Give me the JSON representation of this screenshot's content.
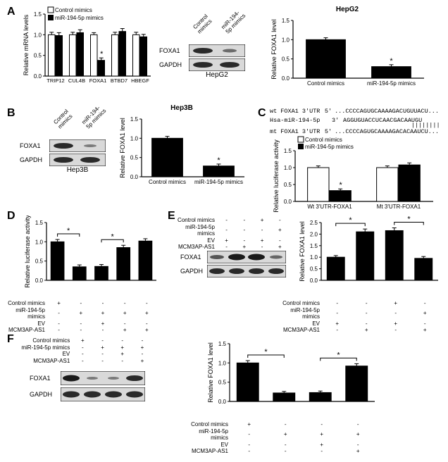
{
  "colors": {
    "bar_black": "#000000",
    "bar_white": "#ffffff",
    "axis": "#000000",
    "bg": "#ffffff",
    "blot_bg": "#d9d9d9",
    "blot_band": "#2a2a2a"
  },
  "legend": {
    "control": "Control mimics",
    "mir": "miR-194-5p mimics"
  },
  "panelA": {
    "label": "A",
    "mrna_chart": {
      "type": "bar-grouped",
      "ytitle": "Relative mRNA levels",
      "ylim": [
        0,
        1.5
      ],
      "yticks": [
        0.0,
        0.5,
        1.0,
        1.5
      ],
      "categories": [
        "TRIP12",
        "CUL4B",
        "FOXA1",
        "BTBD7",
        "HBEGF"
      ],
      "series": [
        {
          "name": "Control mimics",
          "fill": "#ffffff",
          "stroke": "#000000",
          "values": [
            1.0,
            1.0,
            1.0,
            1.0,
            1.0
          ],
          "err": [
            0.06,
            0.06,
            0.05,
            0.06,
            0.06
          ]
        },
        {
          "name": "miR-194-5p mimics",
          "fill": "#000000",
          "stroke": "#000000",
          "values": [
            0.98,
            1.05,
            0.38,
            1.08,
            0.95
          ],
          "err": [
            0.07,
            0.07,
            0.06,
            0.07,
            0.06
          ]
        }
      ],
      "sig_marks": [
        {
          "category": "FOXA1",
          "series": 1,
          "text": "*"
        }
      ]
    },
    "blot_hepg2": {
      "title": "HepG2",
      "cols": [
        "Control mimics",
        "miR-194-5p mimics"
      ],
      "rows": [
        "FOXA1",
        "GAPDH"
      ]
    },
    "foxa1_hepg2_chart": {
      "title": "HepG2",
      "type": "bar",
      "ytitle": "Relative FOXA1 level",
      "ylim": [
        0,
        1.5
      ],
      "yticks": [
        0.0,
        0.5,
        1.0,
        1.5
      ],
      "categories": [
        "Control mimics",
        "miR-194-5p mimics"
      ],
      "bars": [
        {
          "value": 1.0,
          "err": 0.05,
          "fill": "#000000"
        },
        {
          "value": 0.3,
          "err": 0.05,
          "fill": "#000000",
          "sig": "*"
        }
      ]
    }
  },
  "panelB": {
    "label": "B",
    "blot_hep3b": {
      "title": "Hep3B",
      "cols": [
        "Control mimics",
        "miR-194-5p mimics"
      ],
      "rows": [
        "FOXA1",
        "GAPDH"
      ]
    },
    "foxa1_hep3b_chart": {
      "title": "Hep3B",
      "type": "bar",
      "ytitle": "Relative FOXA1 level",
      "ylim": [
        0,
        1.5
      ],
      "yticks": [
        0.0,
        0.5,
        1.0,
        1.5
      ],
      "categories": [
        "Control mimics",
        "miR-194-5p mimics"
      ],
      "bars": [
        {
          "value": 1.0,
          "err": 0.05,
          "fill": "#000000"
        },
        {
          "value": 0.28,
          "err": 0.05,
          "fill": "#000000",
          "sig": "*"
        }
      ]
    }
  },
  "panelC": {
    "label": "C",
    "seq": {
      "wt_label": "wt FOXA1 3'UTR",
      "wt_5": "5'",
      "wt_seq": "...CCCCAGUGCAAAAGACUGUUACU...",
      "mir_label": "Hsa-miR-194-5p",
      "mir_3": "3'",
      "align": "        ||||||||",
      "mir_seq": "AGGUGUACCUCAACGACAAUGU",
      "mt_label": "mt FOXA1 3'UTR",
      "mt_5": "5'",
      "mt_seq": "...CCCCAGUGCAAAAGACACAAUCU..."
    },
    "luc_chart": {
      "type": "bar-grouped",
      "ytitle": "Relative luciferase activity",
      "ylim": [
        0,
        1.5
      ],
      "yticks": [
        0.0,
        0.5,
        1.0,
        1.5
      ],
      "categories": [
        "Wt 3'UTR-FOXA1",
        "Mt 3'UTR-FOXA1"
      ],
      "series": [
        {
          "name": "Control mimics",
          "fill": "#ffffff",
          "stroke": "#000000",
          "values": [
            1.0,
            1.0
          ],
          "err": [
            0.05,
            0.05
          ]
        },
        {
          "name": "miR-194-5p mimics",
          "fill": "#000000",
          "stroke": "#000000",
          "values": [
            0.32,
            1.08
          ],
          "err": [
            0.05,
            0.06
          ]
        }
      ],
      "sig_marks": [
        {
          "category": "Wt 3'UTR-FOXA1",
          "series": 1,
          "text": "*"
        }
      ]
    }
  },
  "panelD": {
    "label": "D",
    "chart": {
      "type": "bar",
      "ytitle": "Relative luciferase activity",
      "ylim": [
        0,
        1.5
      ],
      "yticks": [
        0.0,
        0.5,
        1.0,
        1.5
      ],
      "bars": [
        {
          "value": 1.0,
          "err": 0.06,
          "fill": "#000000"
        },
        {
          "value": 0.35,
          "err": 0.05,
          "fill": "#000000"
        },
        {
          "value": 0.36,
          "err": 0.05,
          "fill": "#000000"
        },
        {
          "value": 0.85,
          "err": 0.06,
          "fill": "#000000"
        },
        {
          "value": 1.02,
          "err": 0.06,
          "fill": "#000000"
        }
      ],
      "sig_brackets": [
        {
          "from": 0,
          "to": 1,
          "text": "*"
        },
        {
          "from": 2,
          "to": 3,
          "text": "*"
        }
      ],
      "conditions": {
        "labels": [
          "Control mimics",
          "miR-194-5p mimics",
          "EV",
          "MCM3AP-AS1"
        ],
        "matrix": [
          [
            "+",
            "-",
            "-",
            "-",
            "-"
          ],
          [
            "-",
            "+",
            "+",
            "+",
            "+"
          ],
          [
            "-",
            "-",
            "+",
            "-",
            "-"
          ],
          [
            "-",
            "-",
            "-",
            "+",
            "+"
          ]
        ]
      }
    }
  },
  "panelE": {
    "label": "E",
    "blot": {
      "rows": [
        "FOXA1",
        "GAPDH"
      ],
      "conditions": {
        "labels": [
          "Control mimics",
          "miR-194-5p mimics",
          "EV",
          "MCM3AP-AS1"
        ],
        "matrix": [
          [
            "-",
            "-",
            "+",
            "-"
          ],
          [
            "-",
            "-",
            "-",
            "+"
          ],
          [
            "+",
            "-",
            "+",
            "-"
          ],
          [
            "-",
            "+",
            "-",
            "+"
          ]
        ]
      }
    },
    "chart": {
      "type": "bar",
      "ytitle": "Relative FOXA1 level",
      "ylim": [
        0,
        2.5
      ],
      "yticks": [
        0.0,
        0.5,
        1.0,
        1.5,
        2.0,
        2.5
      ],
      "bars": [
        {
          "value": 1.0,
          "err": 0.07,
          "fill": "#000000"
        },
        {
          "value": 2.1,
          "err": 0.12,
          "fill": "#000000"
        },
        {
          "value": 2.15,
          "err": 0.12,
          "fill": "#000000"
        },
        {
          "value": 0.95,
          "err": 0.08,
          "fill": "#000000"
        }
      ],
      "sig_brackets": [
        {
          "from": 0,
          "to": 1,
          "text": "*"
        },
        {
          "from": 2,
          "to": 3,
          "text": "*"
        }
      ],
      "conditions": {
        "labels": [
          "Control mimics",
          "miR-194-5p mimics",
          "EV",
          "MCM3AP-AS1"
        ],
        "matrix": [
          [
            "-",
            "-",
            "+",
            "-"
          ],
          [
            "-",
            "-",
            "-",
            "+"
          ],
          [
            "+",
            "-",
            "+",
            "-"
          ],
          [
            "-",
            "+",
            "-",
            "+"
          ]
        ]
      }
    }
  },
  "panelF": {
    "label": "F",
    "blot": {
      "rows": [
        "FOXA1",
        "GAPDH"
      ],
      "conditions": {
        "labels": [
          "Control mimics",
          "miR-194-5p mimics",
          "EV",
          "MCM3AP-AS1"
        ],
        "matrix": [
          [
            "+",
            "-",
            "-",
            "-"
          ],
          [
            "-",
            "+",
            "+",
            "+"
          ],
          [
            "-",
            "-",
            "+",
            "-"
          ],
          [
            "-",
            "-",
            "-",
            "+"
          ]
        ]
      }
    },
    "chart": {
      "type": "bar",
      "ytitle": "Relative FOXA1 level",
      "ylim": [
        0,
        1.5
      ],
      "yticks": [
        0.0,
        0.5,
        1.0,
        1.5
      ],
      "bars": [
        {
          "value": 1.0,
          "err": 0.06,
          "fill": "#000000"
        },
        {
          "value": 0.22,
          "err": 0.04,
          "fill": "#000000"
        },
        {
          "value": 0.23,
          "err": 0.04,
          "fill": "#000000"
        },
        {
          "value": 0.92,
          "err": 0.06,
          "fill": "#000000"
        }
      ],
      "sig_brackets": [
        {
          "from": 0,
          "to": 1,
          "text": "*"
        },
        {
          "from": 2,
          "to": 3,
          "text": "*"
        }
      ],
      "conditions": {
        "labels": [
          "Control mimics",
          "miR-194-5p mimics",
          "EV",
          "MCM3AP-AS1"
        ],
        "matrix": [
          [
            "+",
            "-",
            "-",
            "-"
          ],
          [
            "-",
            "+",
            "+",
            "+"
          ],
          [
            "-",
            "-",
            "+",
            "-"
          ],
          [
            "-",
            "-",
            "-",
            "+"
          ]
        ]
      }
    }
  }
}
